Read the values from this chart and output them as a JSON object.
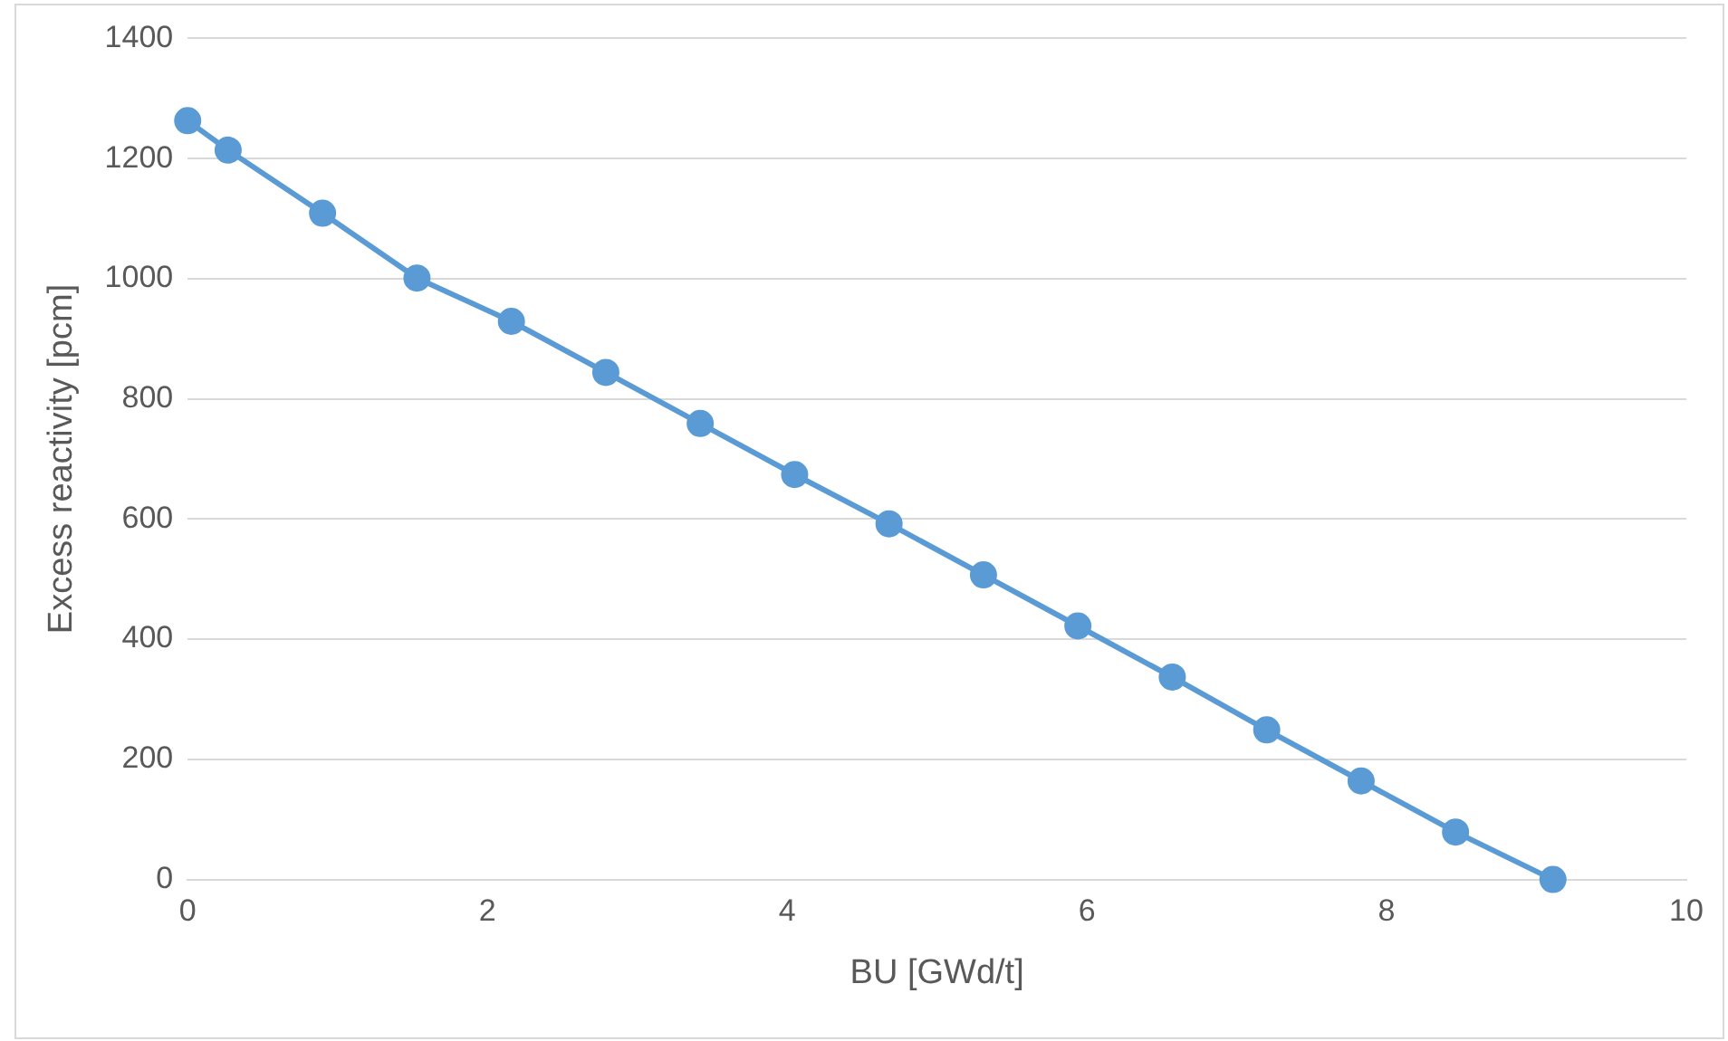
{
  "chart_data": {
    "type": "line",
    "xlabel": "BU [GWd/t]",
    "ylabel": "Excess reactivity [pcm]",
    "x": [
      0,
      0.27,
      0.9,
      1.53,
      2.16,
      2.79,
      3.42,
      4.05,
      4.68,
      5.31,
      5.94,
      6.57,
      7.2,
      7.83,
      8.46,
      9.11
    ],
    "series": [
      {
        "color": "#5b9bd5",
        "values": [
          1263,
          1214,
          1109,
          1001,
          929,
          844,
          759,
          674,
          592,
          507,
          422,
          337,
          249,
          164,
          79,
          0
        ]
      }
    ],
    "xlim": [
      0,
      10
    ],
    "xticks": [
      0,
      2,
      4,
      6,
      8,
      10
    ],
    "ylim": [
      0,
      1400
    ],
    "yticks": [
      0,
      200,
      400,
      600,
      800,
      1000,
      1200,
      1400
    ],
    "grid": "y",
    "marker": "circle",
    "line_style": "solid",
    "legend": false
  }
}
